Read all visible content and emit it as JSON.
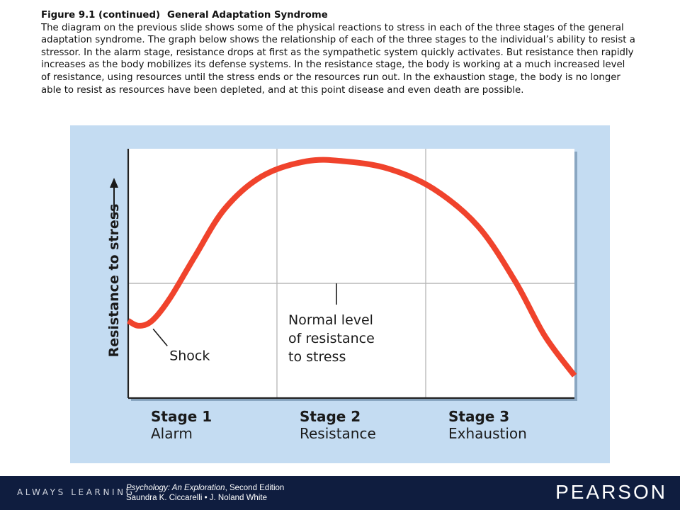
{
  "caption": {
    "title": "Figure 9.1 (continued)",
    "subtitle": "General Adaptation Syndrome",
    "body": "The diagram on the previous slide shows some of the physical reactions to stress in each of the three stages of the general adaptation syndrome. The graph below shows the relationship of each of the three stages to the individual’s ability to resist a stressor. In the alarm stage, resistance drops at first as the sympathetic system quickly activates. But resistance then rapidly increases as the body mobilizes its defense systems. In the resistance stage, the body is working at a much increased level of resistance, using resources until the stress ends or the resources run out. In the exhaustion stage, the body is no longer able to resist as resources have been depleted, and at this point disease and even death are possible."
  },
  "chart_data": {
    "type": "line",
    "title": "",
    "xlabel": "",
    "ylabel": "Resistance to stress",
    "xlim": [
      0,
      3
    ],
    "ylim": [
      0,
      1
    ],
    "grid": true,
    "stages": [
      {
        "number": "Stage 1",
        "name": "Alarm"
      },
      {
        "number": "Stage 2",
        "name": "Resistance"
      },
      {
        "number": "Stage 3",
        "name": "Exhaustion"
      }
    ],
    "normal_level": 0.46,
    "series": [
      {
        "color": "#f0432c",
        "points": [
          [
            0.0,
            0.31
          ],
          [
            0.07,
            0.29
          ],
          [
            0.16,
            0.31
          ],
          [
            0.28,
            0.4
          ],
          [
            0.45,
            0.57
          ],
          [
            0.65,
            0.76
          ],
          [
            0.9,
            0.89
          ],
          [
            1.2,
            0.95
          ],
          [
            1.45,
            0.95
          ],
          [
            1.75,
            0.92
          ],
          [
            2.05,
            0.84
          ],
          [
            2.35,
            0.69
          ],
          [
            2.6,
            0.47
          ],
          [
            2.8,
            0.25
          ],
          [
            3.0,
            0.09
          ]
        ]
      }
    ],
    "annotations": [
      {
        "text": "Shock",
        "x": 0.12,
        "y": 0.3
      },
      {
        "text": "Normal level of resistance to stress",
        "x": 1.4,
        "y": 0.46
      }
    ]
  },
  "colors": {
    "panel_bg": "#c4dcf2",
    "plot_bg": "#ffffff",
    "curve": "#f0432c",
    "footer_bg": "#0f1d3f"
  },
  "footer": {
    "tagline": "ALWAYS LEARNING",
    "book_title": "Psychology: An Exploration",
    "book_edition": ", Second Edition",
    "authors": "Saundra K. Ciccarelli • J. Noland White",
    "brand": "PEARSON"
  }
}
